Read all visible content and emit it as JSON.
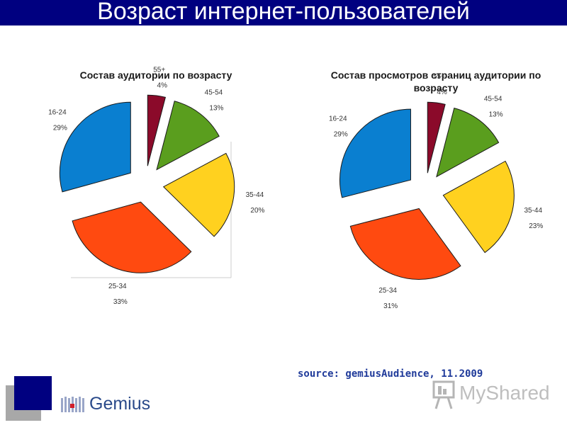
{
  "slide": {
    "title": "Возраст интернет-пользователей",
    "source": "source: gemiusAudience, 11.2009",
    "logo_text": "Gemius",
    "watermark_text": "MyShared"
  },
  "colors": {
    "title_bar": "#000080",
    "55+": "#8b0a2a",
    "45-54": "#5a9e1e",
    "35-44": "#ffd11f",
    "25-34": "#ff4a10",
    "16-24": "#0a7fd0"
  },
  "chart_data": [
    {
      "type": "pie",
      "title": "Состав аудитории по возрасту",
      "slices": [
        {
          "label": "55+",
          "value": 4,
          "value_label": "4%"
        },
        {
          "label": "45-54",
          "value": 13,
          "value_label": "13%"
        },
        {
          "label": "35-44",
          "value": 20,
          "value_label": "20%"
        },
        {
          "label": "25-34",
          "value": 33,
          "value_label": "33%"
        },
        {
          "label": "16-24",
          "value": 29,
          "value_label": "29%"
        }
      ]
    },
    {
      "type": "pie",
      "title": "Состав просмотров страниц аудитории по возрасту",
      "slices": [
        {
          "label": "55+",
          "value": 4,
          "value_label": "4%"
        },
        {
          "label": "45-54",
          "value": 13,
          "value_label": "13%"
        },
        {
          "label": "35-44",
          "value": 23,
          "value_label": "23%"
        },
        {
          "label": "25-34",
          "value": 31,
          "value_label": "31%"
        },
        {
          "label": "16-24",
          "value": 29,
          "value_label": "29%"
        }
      ]
    }
  ]
}
